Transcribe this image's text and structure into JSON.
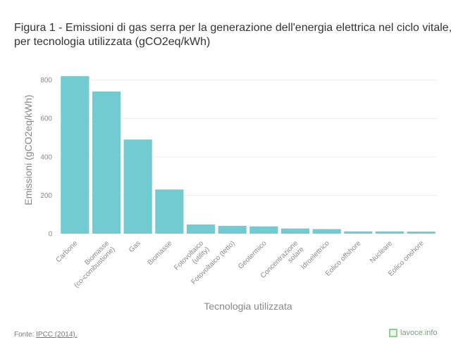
{
  "header": {
    "title_line1": "Figura 1 - Emissioni di gas serra per la generazione dell'energia elettrica nel ciclo vitale,",
    "title_line2": "per tecnologia utilizzata (gCO2eq/kWh)"
  },
  "chart_data": {
    "type": "bar",
    "title": "Figura 1 - Emissioni di gas serra per la generazione dell'energia elettrica nel ciclo vitale, per tecnologia utilizzata (gCO2eq/kWh)",
    "xlabel": "Tecnologia utilizzata",
    "ylabel": "Emissioni (gCO2eq/kWh)",
    "ylim": [
      0,
      850
    ],
    "yticks": [
      0,
      200,
      400,
      600,
      800
    ],
    "grid": true,
    "bar_color": "#72cbd0",
    "categories": [
      [
        "Carbone"
      ],
      [
        "Biomasse",
        "(co-combustione)"
      ],
      [
        "Gas"
      ],
      [
        "Biomasse"
      ],
      [
        "Fotovoltaico",
        "(utility)"
      ],
      [
        "Fotovoltaico (tetto)"
      ],
      [
        "Geotermico"
      ],
      [
        "Concentrazione",
        "solare"
      ],
      [
        "Idroelettrico"
      ],
      [
        "Eolico offshore"
      ],
      [
        "Nucleare"
      ],
      [
        "Eolico onshore"
      ]
    ],
    "values": [
      820,
      740,
      490,
      230,
      48,
      41,
      38,
      27,
      24,
      12,
      12,
      11
    ]
  },
  "footer": {
    "source_label": "Fonte:",
    "source_link": "IPCC (2014).",
    "brand": "lavoce.info"
  },
  "colors": {
    "bar": "#72cbd0",
    "gridline": "#ececec",
    "tick_text": "#888888",
    "axis_title": "#888888"
  }
}
